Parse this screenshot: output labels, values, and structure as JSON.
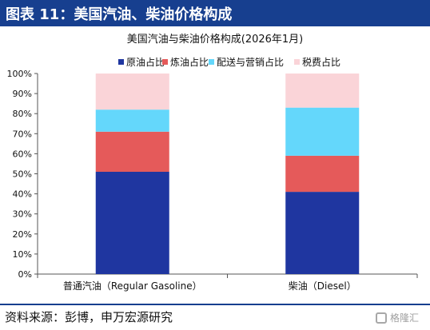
{
  "header": {
    "title": "图表 11：美国汽油、柴油价格构成"
  },
  "footer": {
    "source": "资料来源：彭博，申万宏源研究"
  },
  "watermark": {
    "text": "格隆汇",
    "icon": "ge-logo-icon"
  },
  "colors": {
    "header_bg": "#173f8f",
    "axis": "#555555"
  },
  "chart_data": {
    "type": "bar",
    "stacked": true,
    "title": "美国汽油与柴油价格构成(2026年1月)",
    "categories": [
      "普通汽油（Regular Gasoline）",
      "柴油（Diesel）"
    ],
    "series": [
      {
        "name": "原油占比",
        "color": "#1f36a0",
        "values": [
          51,
          41
        ]
      },
      {
        "name": "炼油占比",
        "color": "#e55a5a",
        "values": [
          20,
          18
        ]
      },
      {
        "name": "配送与营销占比",
        "color": "#64d7fb",
        "values": [
          11,
          24
        ]
      },
      {
        "name": "税费占比",
        "color": "#fad4d8",
        "values": [
          18,
          17
        ]
      }
    ],
    "ylim": [
      0,
      100
    ],
    "yticks": [
      "0%",
      "10%",
      "20%",
      "30%",
      "40%",
      "50%",
      "60%",
      "70%",
      "80%",
      "90%",
      "100%"
    ],
    "legend_position": "top",
    "grid": false
  }
}
